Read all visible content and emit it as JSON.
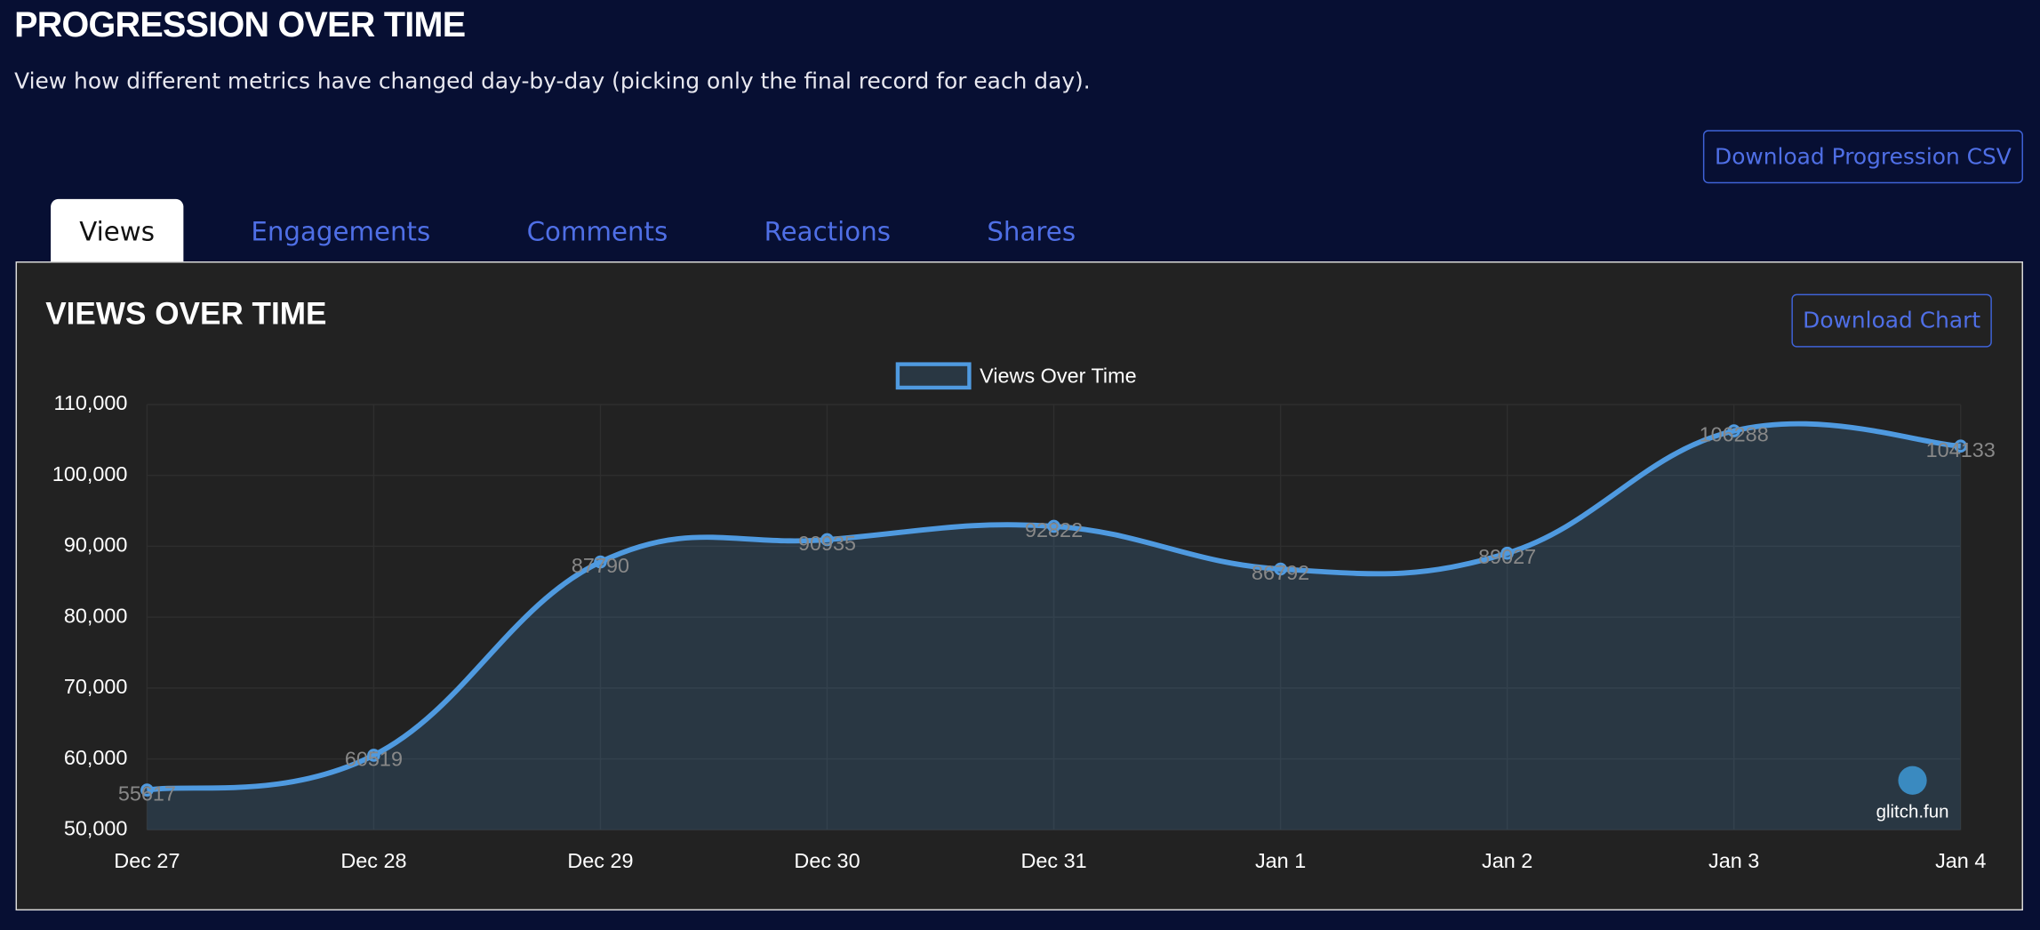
{
  "header": {
    "title": "PROGRESSION OVER TIME",
    "subtitle": "View how different metrics have changed day-by-day (picking only the final record for each day)."
  },
  "download_csv": "Download Progression CSV",
  "tabs": [
    "Views",
    "Engagements",
    "Comments",
    "Reactions",
    "Shares"
  ],
  "download_chart": "Download Chart",
  "watermark": "glitch.fun",
  "chart_data": {
    "type": "line",
    "title": "VIEWS OVER TIME",
    "categories": [
      "Dec 27",
      "Dec 28",
      "Dec 29",
      "Dec 30",
      "Dec 31",
      "Jan 1",
      "Jan 2",
      "Jan 3",
      "Jan 4"
    ],
    "series": [
      {
        "name": "Views Over Time",
        "color": "#4f9ae0",
        "values": [
          55617,
          60519,
          87790,
          90935,
          92822,
          86792,
          89027,
          106288,
          104133
        ]
      }
    ],
    "ylim": [
      50000,
      110000
    ],
    "yticks": [
      {
        "value": 50000,
        "label": "50,000"
      },
      {
        "value": 60000,
        "label": "60,000"
      },
      {
        "value": 70000,
        "label": "70,000"
      },
      {
        "value": 80000,
        "label": "80,000"
      },
      {
        "value": 90000,
        "label": "90,000"
      },
      {
        "value": 100000,
        "label": "100,000"
      },
      {
        "value": 110000,
        "label": "110,000"
      }
    ],
    "grid": true,
    "fill": true,
    "legend": "top"
  }
}
